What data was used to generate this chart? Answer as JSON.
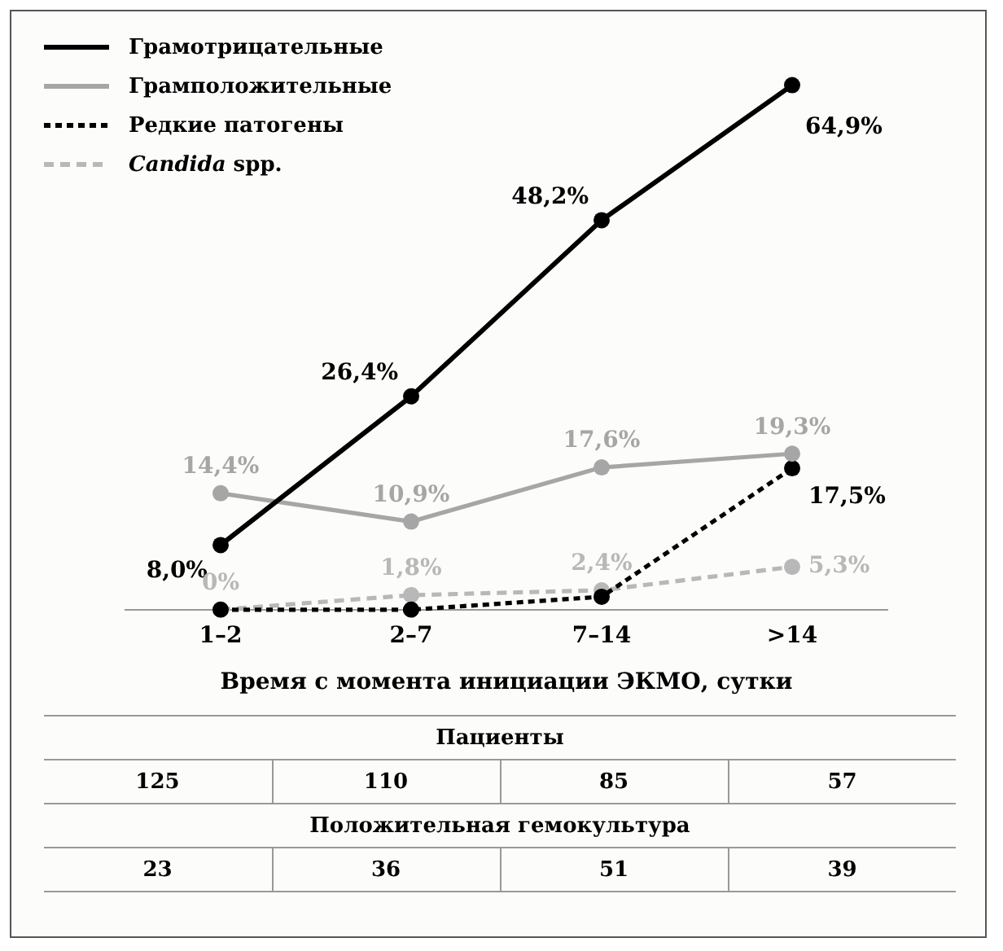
{
  "chart_data": {
    "type": "line",
    "xlabel": "Время с момента инициации ЭКМО, сутки",
    "categories": [
      "1–2",
      "2–7",
      "7–14",
      ">14"
    ],
    "tick_labels": "x",
    "grid": false,
    "legend": "top left",
    "marker": "circle",
    "series": [
      {
        "name": "Грамотрицательные",
        "color": "#000000",
        "line_style": "solid",
        "values": [
          8.0,
          26.4,
          48.2,
          64.9
        ],
        "value_labels": [
          "8,0%",
          "26,4%",
          "48,2%",
          "64,9%"
        ]
      },
      {
        "name": "Грамположительные",
        "color": "#a6a6a6",
        "line_style": "solid",
        "values": [
          14.4,
          10.9,
          17.6,
          19.3
        ],
        "value_labels": [
          "14,4%",
          "10,9%",
          "17,6%",
          "19,3%"
        ]
      },
      {
        "name": "Редкие патогены",
        "color": "#000000",
        "line_style": "dotted",
        "values": [
          0,
          0,
          1.6,
          17.5
        ],
        "value_labels": [
          null,
          null,
          null,
          "17,5%"
        ]
      },
      {
        "name": "Candida spp.",
        "color": "#b8b8b8",
        "line_style": "dashed",
        "values": [
          0,
          1.8,
          2.4,
          5.3
        ],
        "value_labels": [
          "0%",
          "1,8%",
          "2,4%",
          "5,3%"
        ]
      }
    ],
    "annotations": [
      "Пациенты",
      "125",
      "110",
      "85",
      "57",
      "Положительная гемокультура",
      "23",
      "36",
      "51",
      "39"
    ]
  }
}
